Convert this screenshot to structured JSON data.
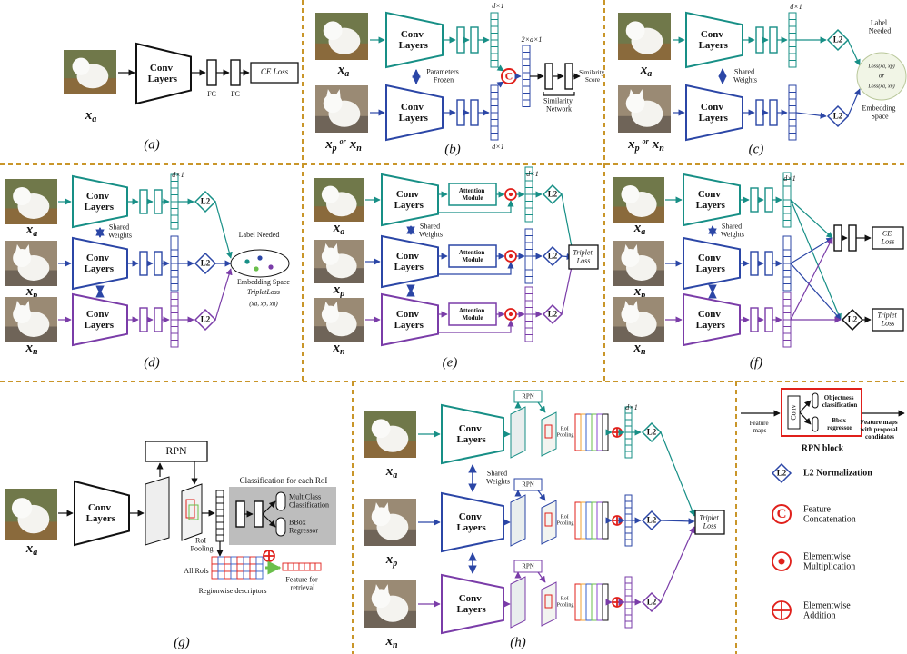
{
  "a": {
    "input": {
      "x": "x",
      "sub": "a"
    },
    "encoder": "Conv Layers",
    "fc": [
      "FC",
      "FC"
    ],
    "loss": "CE Loss",
    "caption": "(a)"
  },
  "b": {
    "inputs": [
      {
        "x": "x",
        "sub": "a"
      },
      {
        "x": "x",
        "sub": "p",
        "or": "or",
        "x2": "x",
        "sub2": "n"
      }
    ],
    "encoders": [
      "Conv Layers",
      "Conv Layers"
    ],
    "dims": [
      "d×1",
      "d×1"
    ],
    "frozen": "Parameters Frozen",
    "concat": "C",
    "concat_dim": "2×d×1",
    "network": "Similarity Network",
    "score": "Similarity Score",
    "caption": "(b)"
  },
  "c": {
    "inputs": [
      {
        "x": "x",
        "sub": "a"
      },
      {
        "x": "x",
        "sub": "p",
        "or": "or",
        "x2": "x",
        "sub2": "n"
      }
    ],
    "encoders": [
      "Conv Layers",
      "Conv Layers"
    ],
    "dim": "d×1",
    "shared": "Shared Weights",
    "l2": [
      "L2",
      "L2"
    ],
    "label_needed": "Label Needed",
    "losses": [
      "Loss(xa, xp)",
      "or",
      "Loss(xa, xn)"
    ],
    "space": "Embedding Space",
    "caption": "(c)"
  },
  "d": {
    "inputs": [
      {
        "x": "x",
        "sub": "a"
      },
      {
        "x": "x",
        "sub": "p"
      },
      {
        "x": "x",
        "sub": "n"
      }
    ],
    "encoders": [
      "Conv Layers",
      "Conv Layers",
      "Conv Layers"
    ],
    "dim": "d×1",
    "shared": "Shared Weights",
    "l2": [
      "L2",
      "L2",
      "L2"
    ],
    "label_needed": "Label Needed",
    "space": "Embedding Space",
    "loss": "TripletLoss",
    "tuple": "(xa, xp, xn)",
    "caption": "(d)"
  },
  "e": {
    "inputs": [
      {
        "x": "x",
        "sub": "a"
      },
      {
        "x": "x",
        "sub": "p"
      },
      {
        "x": "x",
        "sub": "n"
      }
    ],
    "encoders": [
      "Conv Layers",
      "Conv Layers",
      "Conv Layers"
    ],
    "attention": [
      "Attention Module",
      "Attention Module",
      "Attention Module"
    ],
    "dim": "d×1",
    "shared": "Shared Weights",
    "l2": [
      "L2",
      "L2",
      "L2"
    ],
    "loss": "Triplet Loss",
    "caption": "(e)"
  },
  "f": {
    "inputs": [
      {
        "x": "x",
        "sub": "a"
      },
      {
        "x": "x",
        "sub": "p"
      },
      {
        "x": "x",
        "sub": "n"
      }
    ],
    "encoders": [
      "Conv Layers",
      "Conv Layers",
      "Conv Layers"
    ],
    "dim": "d×1",
    "shared": "Shared Weights",
    "ce": "CE Loss",
    "l2": "L2",
    "triplet": "Triplet Loss",
    "caption": "(f)"
  },
  "g": {
    "input": {
      "x": "x",
      "sub": "a"
    },
    "encoder": "Conv Layers",
    "rpn": "RPN",
    "roi": "RoI Pooling",
    "cls_title": "Classification for each RoI",
    "multiclass": "MultiClass Classification",
    "bbox": "BBox Regressor",
    "all_rois": "All RoIs",
    "regionwise": "Regionwise descriptors",
    "feature": "Feature for retrieval",
    "caption": "(g)"
  },
  "h": {
    "inputs": [
      {
        "x": "x",
        "sub": "a"
      },
      {
        "x": "x",
        "sub": "p"
      },
      {
        "x": "x",
        "sub": "n"
      }
    ],
    "encoders": [
      "Conv Layers",
      "Conv Layers",
      "Conv Layers"
    ],
    "rpn": [
      "RPN",
      "RPN",
      "RPN"
    ],
    "roi": [
      "RoI Pooling",
      "RoI Pooling",
      "RoI Pooling"
    ],
    "dim": "d×1",
    "shared": "Shared Weights",
    "l2": [
      "L2",
      "L2",
      "L2"
    ],
    "loss": "Triplet Loss",
    "caption": "(h)"
  },
  "legend": {
    "rpn_in": "Feature maps",
    "rpn_conv": "Conv",
    "rpn_obj": "Objectness classification",
    "rpn_bbox": "Bbox regressor",
    "rpn_out": "Feature maps with proposal condidates",
    "rpn_caption": "RPN block",
    "l2_symbol": "L2",
    "l2": "L2 Normalization",
    "concat_symbol": "C",
    "concat": "Feature Concatenation",
    "mult": "Elementwise Multiplication",
    "add": "Elementwise Addition"
  }
}
